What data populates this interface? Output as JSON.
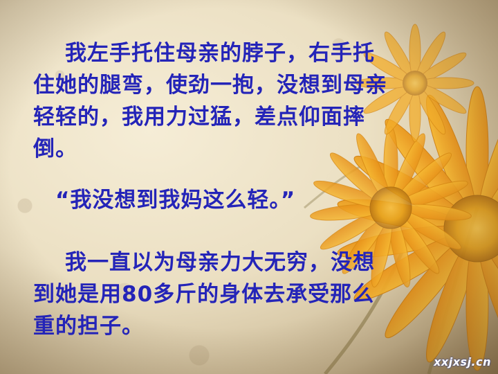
{
  "slide": {
    "paragraphs": [
      {
        "lines": [
          "我左手托住母亲的脖子，右手托",
          "住她的腿弯，使劲一抱，没想到母亲",
          "轻轻的，我用力过猛，差点仰面摔",
          "倒。"
        ]
      },
      {
        "lines": [
          "“我没想到我妈这么轻。”"
        ]
      },
      {
        "lines": [
          "我一直以为母亲力大无穷，没想",
          "到她是用80多斤的身体去承受那么",
          "重的担子。"
        ]
      }
    ],
    "watermark": "xxjxsj.cn"
  },
  "colors": {
    "text": "#2424b8",
    "petal": "#f2a81e",
    "background": "#e9dcbc"
  },
  "icons": [
    "sunflower-illustration"
  ]
}
